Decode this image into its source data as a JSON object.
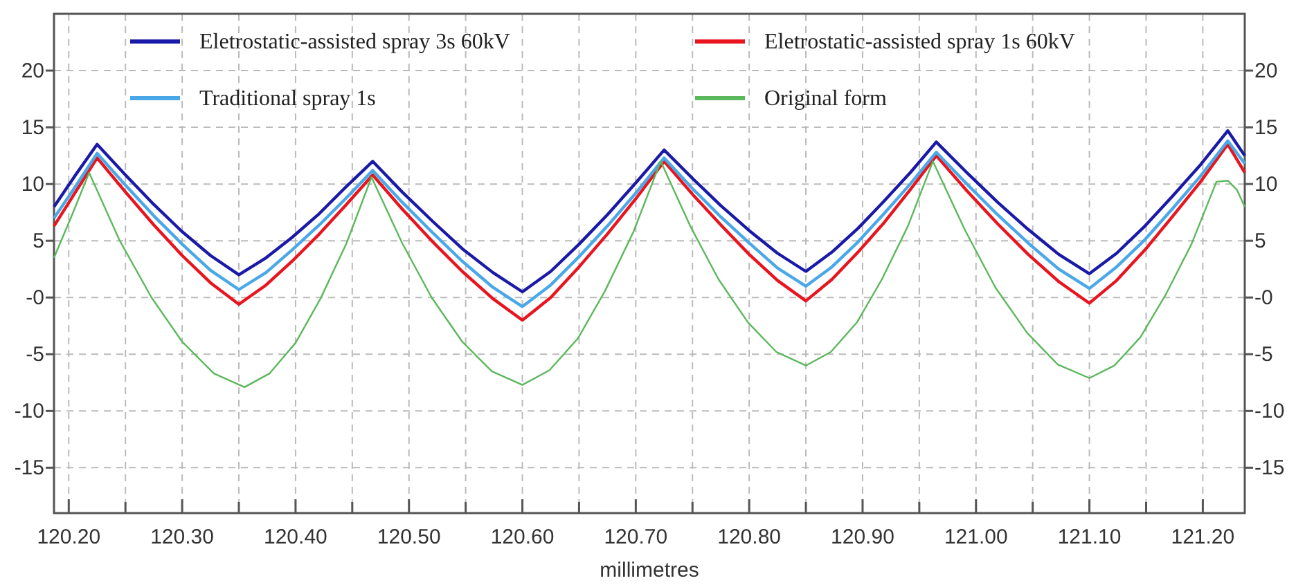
{
  "chart_data": {
    "type": "line",
    "xlabel": "millimetres",
    "x": [
      120.187,
      120.206,
      120.225,
      120.25,
      120.275,
      120.3,
      120.325,
      120.35,
      120.374,
      120.397,
      120.421,
      120.444,
      120.468,
      120.494,
      120.521,
      120.547,
      120.574,
      120.6,
      120.625,
      120.65,
      120.675,
      120.7,
      120.725,
      120.75,
      120.775,
      120.8,
      120.825,
      120.85,
      120.873,
      120.896,
      120.919,
      120.942,
      120.965,
      120.992,
      121.019,
      121.046,
      121.073,
      121.1,
      121.124,
      121.149,
      121.173,
      121.198,
      121.222,
      121.237
    ],
    "series": [
      {
        "name": "Eletrostatic-assisted spray 3s 60kV",
        "color": "#1a1aa8",
        "values": [
          8,
          10.8,
          13.5,
          10.8,
          8.2,
          5.8,
          3.7,
          2,
          3.5,
          5.3,
          7.4,
          9.7,
          12,
          9.3,
          6.7,
          4.3,
          2.2,
          0.5,
          2.3,
          4.7,
          7.3,
          10.1,
          13,
          10.5,
          8.1,
          5.9,
          3.9,
          2.3,
          4.0,
          6.1,
          8.5,
          11.0,
          13.7,
          11.0,
          8.4,
          6.0,
          3.8,
          2.1,
          3.9,
          6.3,
          8.9,
          11.7,
          14.7,
          12.5
        ]
      },
      {
        "name": "Eletrostatic-assisted spray 1s 60kV",
        "color": "#e8141e",
        "values": [
          6.3,
          9.3,
          12.3,
          9.3,
          6.4,
          3.7,
          1.3,
          -0.6,
          1.1,
          3.2,
          5.6,
          8.1,
          10.8,
          7.8,
          4.9,
          2.3,
          -0.1,
          -2,
          0.0,
          2.7,
          5.6,
          8.7,
          12,
          9.1,
          6.4,
          3.8,
          1.5,
          -0.3,
          1.6,
          4.0,
          6.6,
          9.5,
          12.5,
          9.4,
          6.5,
          3.8,
          1.4,
          -0.5,
          1.5,
          4.2,
          7.1,
          10.2,
          13.5,
          11
        ]
      },
      {
        "name": "Traditional spray 1s",
        "color": "#4aa8e8",
        "values": [
          7,
          9.8,
          12.7,
          9.9,
          7.2,
          4.7,
          2.4,
          0.7,
          2.2,
          4.2,
          6.4,
          8.7,
          11.2,
          8.4,
          5.7,
          3.2,
          0.9,
          -0.8,
          1.1,
          3.6,
          6.3,
          9.2,
          12.3,
          9.6,
          7.1,
          4.8,
          2.6,
          1.0,
          2.7,
          4.9,
          7.4,
          10.0,
          12.8,
          10.0,
          7.3,
          4.8,
          2.5,
          0.8,
          2.7,
          5.1,
          7.8,
          10.7,
          13.8,
          11.8
        ]
      },
      {
        "name": "Original form",
        "color": "#5cb85c",
        "x": [
          120.187,
          120.203,
          120.218,
          120.245,
          120.273,
          120.3,
          120.328,
          120.355,
          120.377,
          120.4,
          120.422,
          120.445,
          120.467,
          120.494,
          120.52,
          120.547,
          120.573,
          120.6,
          120.624,
          120.649,
          120.673,
          120.698,
          120.722,
          120.748,
          120.773,
          120.799,
          120.824,
          120.85,
          120.872,
          120.895,
          120.917,
          120.94,
          120.962,
          120.99,
          121.017,
          121.045,
          121.072,
          121.1,
          121.122,
          121.145,
          121.167,
          121.19,
          121.212,
          121.222,
          121.23,
          121.237
        ],
        "values": [
          3.5,
          7.3,
          11,
          5.0,
          0.0,
          -3.9,
          -6.7,
          -7.9,
          -6.7,
          -4.0,
          -0.1,
          4.8,
          10.6,
          4.8,
          0.0,
          -3.9,
          -6.5,
          -7.7,
          -6.4,
          -3.6,
          0.6,
          5.8,
          12.0,
          6.3,
          1.6,
          -2.2,
          -4.8,
          -6,
          -4.8,
          -2.2,
          1.6,
          6.3,
          12.0,
          6.0,
          0.9,
          -3.1,
          -5.9,
          -7.1,
          -6.0,
          -3.5,
          0.2,
          4.7,
          10.2,
          10.3,
          9.5,
          8
        ]
      }
    ],
    "xlim": [
      120.187,
      121.237
    ],
    "xticks": [
      {
        "value": 120.2,
        "label": "120.20"
      },
      {
        "value": 120.25,
        "label": null
      },
      {
        "value": 120.3,
        "label": "120.30"
      },
      {
        "value": 120.35,
        "label": null
      },
      {
        "value": 120.4,
        "label": "120.40"
      },
      {
        "value": 120.45,
        "label": null
      },
      {
        "value": 120.5,
        "label": "120.50"
      },
      {
        "value": 120.55,
        "label": null
      },
      {
        "value": 120.6,
        "label": "120.60"
      },
      {
        "value": 120.65,
        "label": null
      },
      {
        "value": 120.7,
        "label": "120.70"
      },
      {
        "value": 120.75,
        "label": null
      },
      {
        "value": 120.8,
        "label": "120.80"
      },
      {
        "value": 120.85,
        "label": null
      },
      {
        "value": 120.9,
        "label": "120.90"
      },
      {
        "value": 120.95,
        "label": null
      },
      {
        "value": 121.0,
        "label": "121.00"
      },
      {
        "value": 121.05,
        "label": null
      },
      {
        "value": 121.1,
        "label": "121.10"
      },
      {
        "value": 121.15,
        "label": null
      },
      {
        "value": 121.2,
        "label": "121.20"
      }
    ],
    "ylim": [
      -19,
      25
    ],
    "yticks": [
      -15,
      -10,
      -5,
      {
        "value": 0,
        "label": "-0"
      },
      5,
      10,
      15,
      20
    ],
    "y2lim": [
      -19,
      25
    ],
    "y2ticks": [
      -15,
      -10,
      -5,
      {
        "value": 0,
        "label": "-0"
      },
      5,
      10,
      15,
      20
    ],
    "grid": true,
    "legend": "top",
    "line_style": "solid"
  }
}
